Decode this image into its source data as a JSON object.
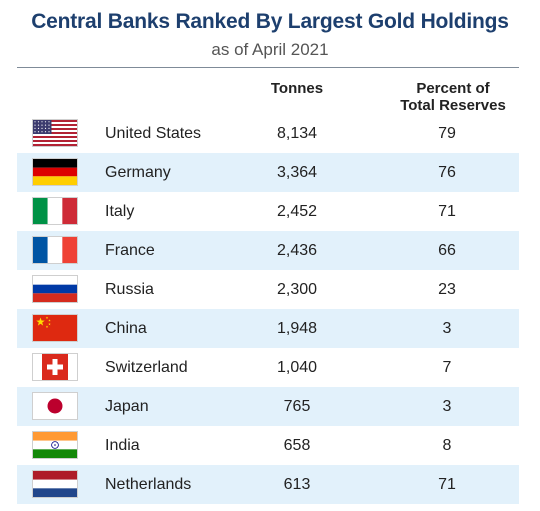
{
  "chart_data": {
    "type": "table",
    "title": "Central Banks Ranked By Largest Gold Holdings",
    "subtitle": "as of April 2021",
    "columns": [
      "",
      "",
      "Tonnes",
      "Percent of\nTotal Reserves"
    ],
    "rows": [
      {
        "flag": "us-flag-icon",
        "country": "United States",
        "tonnes": "8,134",
        "percent": "79"
      },
      {
        "flag": "germany-flag-icon",
        "country": "Germany",
        "tonnes": "3,364",
        "percent": "76"
      },
      {
        "flag": "italy-flag-icon",
        "country": "Italy",
        "tonnes": "2,452",
        "percent": "71"
      },
      {
        "flag": "france-flag-icon",
        "country": "France",
        "tonnes": "2,436",
        "percent": "66"
      },
      {
        "flag": "russia-flag-icon",
        "country": "Russia",
        "tonnes": "2,300",
        "percent": "23"
      },
      {
        "flag": "china-flag-icon",
        "country": "China",
        "tonnes": "1,948",
        "percent": "3"
      },
      {
        "flag": "switzerland-flag-icon",
        "country": "Switzerland",
        "tonnes": "1,040",
        "percent": "7"
      },
      {
        "flag": "japan-flag-icon",
        "country": "Japan",
        "tonnes": "765",
        "percent": "3"
      },
      {
        "flag": "india-flag-icon",
        "country": "India",
        "tonnes": "658",
        "percent": "8"
      },
      {
        "flag": "netherlands-flag-icon",
        "country": "Netherlands",
        "tonnes": "613",
        "percent": "71"
      }
    ],
    "colors": {
      "title": "#1d3f6e",
      "row_stripe": "#e2f1fb"
    }
  }
}
